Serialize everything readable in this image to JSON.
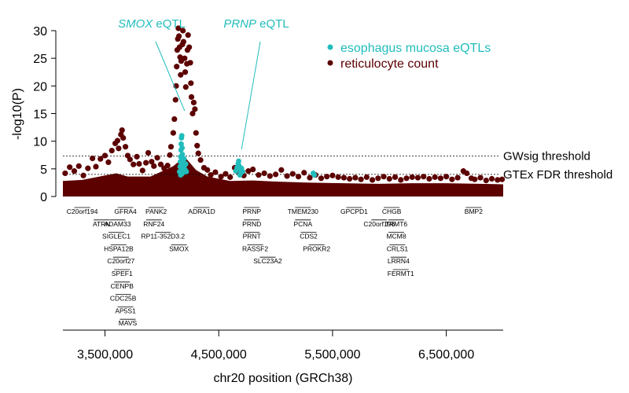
{
  "chart_data": {
    "type": "scatter",
    "title": "",
    "xlabel": "chr20 position (GRCh38)",
    "ylabel": "-log10(P)",
    "xlim": [
      3130000,
      7000000
    ],
    "ylim": [
      0,
      30
    ],
    "x_ticks": [
      {
        "value": 3500000,
        "label": "3,500,000"
      },
      {
        "value": 4500000,
        "label": "4,500,000"
      },
      {
        "value": 5500000,
        "label": "5,500,000"
      },
      {
        "value": 6500000,
        "label": "6,500,000"
      }
    ],
    "y_ticks": [
      {
        "value": 0,
        "label": "0"
      },
      {
        "value": 5,
        "label": "5"
      },
      {
        "value": 10,
        "label": "10"
      },
      {
        "value": 15,
        "label": "15"
      },
      {
        "value": 20,
        "label": "20"
      },
      {
        "value": 25,
        "label": "25"
      },
      {
        "value": 30,
        "label": "30"
      }
    ],
    "legend": {
      "placement": "top-right",
      "entries": [
        {
          "label": "esophagus mucosa eQTLs",
          "color": "#22bcbc"
        },
        {
          "label": "reticulocyte count",
          "color": "#5c0000"
        }
      ]
    },
    "thresholds": [
      {
        "label": "GWsig threshold",
        "value": 7.3
      },
      {
        "label": "GTEx FDR threshold",
        "value": 4.0
      }
    ],
    "annotations": [
      {
        "gene": "SMOX",
        "suffix": " eQTL",
        "x": 4200000,
        "y": 15.5
      },
      {
        "gene": "PRNP",
        "suffix": " eQTL",
        "x": 4700000,
        "y": 8.5
      }
    ],
    "series": [
      {
        "name": "reticulocyte count",
        "color": "#5c0000",
        "points": [
          [
            3150000,
            4.2
          ],
          [
            3190000,
            5.3
          ],
          [
            3230000,
            4.6
          ],
          [
            3270000,
            5.5
          ],
          [
            3310000,
            3.8
          ],
          [
            3350000,
            5.1
          ],
          [
            3390000,
            6.9
          ],
          [
            3420000,
            5.4
          ],
          [
            3460000,
            6.8
          ],
          [
            3500000,
            7.4
          ],
          [
            3530000,
            6.2
          ],
          [
            3560000,
            8.3
          ],
          [
            3590000,
            9.6
          ],
          [
            3610000,
            10.1
          ],
          [
            3620000,
            8.7
          ],
          [
            3640000,
            11.2
          ],
          [
            3650000,
            12.0
          ],
          [
            3660000,
            10.6
          ],
          [
            3680000,
            9.0
          ],
          [
            3700000,
            7.4
          ],
          [
            3720000,
            6.7
          ],
          [
            3750000,
            5.8
          ],
          [
            3780000,
            7.2
          ],
          [
            3800000,
            5.9
          ],
          [
            3830000,
            4.7
          ],
          [
            3860000,
            6.1
          ],
          [
            3880000,
            7.9
          ],
          [
            3910000,
            6.3
          ],
          [
            3930000,
            5.5
          ],
          [
            3960000,
            7.0
          ],
          [
            3990000,
            5.8
          ],
          [
            4020000,
            5.1
          ],
          [
            4050000,
            5.6
          ],
          [
            4070000,
            7.5
          ],
          [
            4080000,
            9.0
          ],
          [
            4100000,
            11.5
          ],
          [
            4110000,
            14.0
          ],
          [
            4120000,
            17.5
          ],
          [
            4125000,
            20.0
          ],
          [
            4130000,
            23.5
          ],
          [
            4135000,
            26.5
          ],
          [
            4140000,
            28.5
          ],
          [
            4145000,
            30.5
          ],
          [
            4150000,
            29.0
          ],
          [
            4155000,
            27.0
          ],
          [
            4160000,
            25.2
          ],
          [
            4165000,
            22.0
          ],
          [
            4170000,
            24.5
          ],
          [
            4180000,
            27.5
          ],
          [
            4185000,
            30.0
          ],
          [
            4190000,
            28.0
          ],
          [
            4200000,
            25.0
          ],
          [
            4205000,
            22.5
          ],
          [
            4210000,
            19.8
          ],
          [
            4220000,
            24.0
          ],
          [
            4225000,
            26.5
          ],
          [
            4230000,
            29.2
          ],
          [
            4240000,
            27.0
          ],
          [
            4250000,
            24.2
          ],
          [
            4255000,
            20.5
          ],
          [
            4260000,
            18.0
          ],
          [
            4270000,
            15.0
          ],
          [
            4280000,
            17.0
          ],
          [
            4290000,
            15.8
          ],
          [
            4300000,
            11.5
          ],
          [
            4310000,
            9.2
          ],
          [
            4320000,
            7.8
          ],
          [
            4340000,
            6.6
          ],
          [
            4370000,
            5.2
          ],
          [
            4400000,
            4.8
          ],
          [
            4430000,
            3.9
          ],
          [
            4470000,
            4.4
          ],
          [
            4520000,
            3.6
          ],
          [
            4560000,
            4.1
          ],
          [
            4600000,
            3.5
          ],
          [
            4640000,
            5.2
          ],
          [
            4680000,
            4.3
          ],
          [
            4720000,
            3.8
          ],
          [
            4760000,
            4.6
          ],
          [
            4800000,
            4.9
          ],
          [
            4850000,
            3.9
          ],
          [
            4900000,
            4.2
          ],
          [
            4950000,
            3.7
          ],
          [
            5000000,
            4.0
          ],
          [
            5050000,
            4.8
          ],
          [
            5100000,
            3.7
          ],
          [
            5150000,
            4.1
          ],
          [
            5200000,
            3.6
          ],
          [
            5250000,
            4.3
          ],
          [
            5300000,
            3.4
          ],
          [
            5350000,
            3.9
          ],
          [
            5400000,
            3.3
          ],
          [
            5450000,
            3.6
          ],
          [
            5500000,
            3.8
          ],
          [
            5550000,
            3.5
          ],
          [
            5600000,
            3.4
          ],
          [
            5650000,
            3.2
          ],
          [
            5700000,
            3.4
          ],
          [
            5750000,
            3.1
          ],
          [
            5800000,
            3.5
          ],
          [
            5850000,
            3.0
          ],
          [
            5900000,
            3.3
          ],
          [
            5950000,
            3.6
          ],
          [
            6000000,
            3.2
          ],
          [
            6050000,
            3.5
          ],
          [
            6100000,
            3.0
          ],
          [
            6150000,
            3.3
          ],
          [
            6200000,
            3.5
          ],
          [
            6250000,
            3.4
          ],
          [
            6300000,
            3.6
          ],
          [
            6350000,
            3.2
          ],
          [
            6400000,
            3.5
          ],
          [
            6450000,
            3.3
          ],
          [
            6500000,
            3.6
          ],
          [
            6550000,
            3.1
          ],
          [
            6600000,
            3.4
          ],
          [
            6650000,
            4.6
          ],
          [
            6680000,
            4.2
          ],
          [
            6720000,
            3.3
          ],
          [
            6750000,
            3.1
          ],
          [
            6800000,
            3.4
          ],
          [
            6850000,
            2.9
          ],
          [
            6900000,
            3.2
          ],
          [
            6950000,
            3.0
          ],
          [
            6990000,
            3.1
          ]
        ],
        "floor": [
          [
            3130000,
            2.8
          ],
          [
            3300000,
            3.0
          ],
          [
            3500000,
            3.8
          ],
          [
            3600000,
            4.2
          ],
          [
            3700000,
            3.6
          ],
          [
            3900000,
            3.6
          ],
          [
            4100000,
            5.5
          ],
          [
            4200000,
            7.2
          ],
          [
            4300000,
            4.8
          ],
          [
            4400000,
            3.6
          ],
          [
            4600000,
            2.8
          ],
          [
            4800000,
            2.9
          ],
          [
            5000000,
            2.7
          ],
          [
            5300000,
            2.5
          ],
          [
            5600000,
            2.4
          ],
          [
            5900000,
            2.3
          ],
          [
            6200000,
            2.4
          ],
          [
            6500000,
            2.4
          ],
          [
            6800000,
            2.3
          ],
          [
            7000000,
            2.2
          ]
        ]
      },
      {
        "name": "esophagus mucosa eQTLs",
        "color": "#22bcbc",
        "points": [
          [
            4155000,
            4.5
          ],
          [
            4160000,
            5.4
          ],
          [
            4162000,
            6.3
          ],
          [
            4165000,
            7.2
          ],
          [
            4168000,
            8.4
          ],
          [
            4170000,
            9.5
          ],
          [
            4172000,
            10.6
          ],
          [
            4175000,
            11.0
          ],
          [
            4178000,
            8.8
          ],
          [
            4180000,
            7.6
          ],
          [
            4183000,
            6.1
          ],
          [
            4186000,
            5.1
          ],
          [
            4190000,
            4.4
          ],
          [
            4195000,
            6.8
          ],
          [
            4200000,
            5.6
          ],
          [
            4205000,
            4.8
          ],
          [
            4210000,
            5.9
          ],
          [
            4215000,
            4.5
          ],
          [
            4165000,
            3.9
          ],
          [
            4175000,
            4.1
          ],
          [
            4650000,
            4.6
          ],
          [
            4660000,
            5.2
          ],
          [
            4670000,
            5.9
          ],
          [
            4675000,
            6.4
          ],
          [
            4680000,
            5.5
          ],
          [
            4690000,
            4.9
          ],
          [
            4695000,
            4.3
          ],
          [
            4700000,
            5.1
          ],
          [
            4710000,
            4.5
          ],
          [
            4685000,
            3.9
          ],
          [
            5330000,
            4.2
          ],
          [
            5340000,
            3.9
          ]
        ]
      }
    ],
    "genes": [
      {
        "label": "C20orf194",
        "x": 3300000,
        "row": 0
      },
      {
        "label": "GFRA4",
        "x": 3680000,
        "row": 0
      },
      {
        "label": "PANK2",
        "x": 3950000,
        "row": 0
      },
      {
        "label": "ADRA1D",
        "x": 4350000,
        "row": 0
      },
      {
        "label": "PRNP",
        "x": 4790000,
        "row": 0
      },
      {
        "label": "TMEM230",
        "x": 5240000,
        "row": 0
      },
      {
        "label": "GPCPD1",
        "x": 5690000,
        "row": 0
      },
      {
        "label": "CHGB",
        "x": 6020000,
        "row": 0
      },
      {
        "label": "BMP2",
        "x": 6740000,
        "row": 0
      },
      {
        "label": "ATRN",
        "x": 3470000,
        "row": 1
      },
      {
        "label": "ADAM33",
        "x": 3610000,
        "row": 1
      },
      {
        "label": "RNF24",
        "x": 3930000,
        "row": 1
      },
      {
        "label": "PRND",
        "x": 4790000,
        "row": 1
      },
      {
        "label": "PCNA",
        "x": 5240000,
        "row": 1
      },
      {
        "label": "C20orf196",
        "x": 5910000,
        "row": 1
      },
      {
        "label": "TRMT6",
        "x": 6060000,
        "row": 1
      },
      {
        "label": "SIGLEC1",
        "x": 3600000,
        "row": 2
      },
      {
        "label": "RP11-352D3.2",
        "x": 4010000,
        "row": 2
      },
      {
        "label": "PRNT",
        "x": 4790000,
        "row": 2
      },
      {
        "label": "CDS2",
        "x": 5290000,
        "row": 2
      },
      {
        "label": "MCM8",
        "x": 6060000,
        "row": 2
      },
      {
        "label": "HSPA12B",
        "x": 3620000,
        "row": 3
      },
      {
        "label": "SMOX",
        "x": 4150000,
        "row": 3
      },
      {
        "label": "RASSF2",
        "x": 4820000,
        "row": 3
      },
      {
        "label": "PROKR2",
        "x": 5360000,
        "row": 3
      },
      {
        "label": "CRLS1",
        "x": 6070000,
        "row": 3
      },
      {
        "label": "C20orf27",
        "x": 3640000,
        "row": 4
      },
      {
        "label": "SLC23A2",
        "x": 4930000,
        "row": 4
      },
      {
        "label": "LRRN4",
        "x": 6080000,
        "row": 4
      },
      {
        "label": "SPEF1",
        "x": 3650000,
        "row": 5
      },
      {
        "label": "FERMT1",
        "x": 6100000,
        "row": 5
      },
      {
        "label": "CENPB",
        "x": 3650000,
        "row": 6
      },
      {
        "label": "CDC25B",
        "x": 3660000,
        "row": 7
      },
      {
        "label": "AP5S1",
        "x": 3680000,
        "row": 8
      },
      {
        "label": "MAVS",
        "x": 3700000,
        "row": 9
      }
    ]
  }
}
